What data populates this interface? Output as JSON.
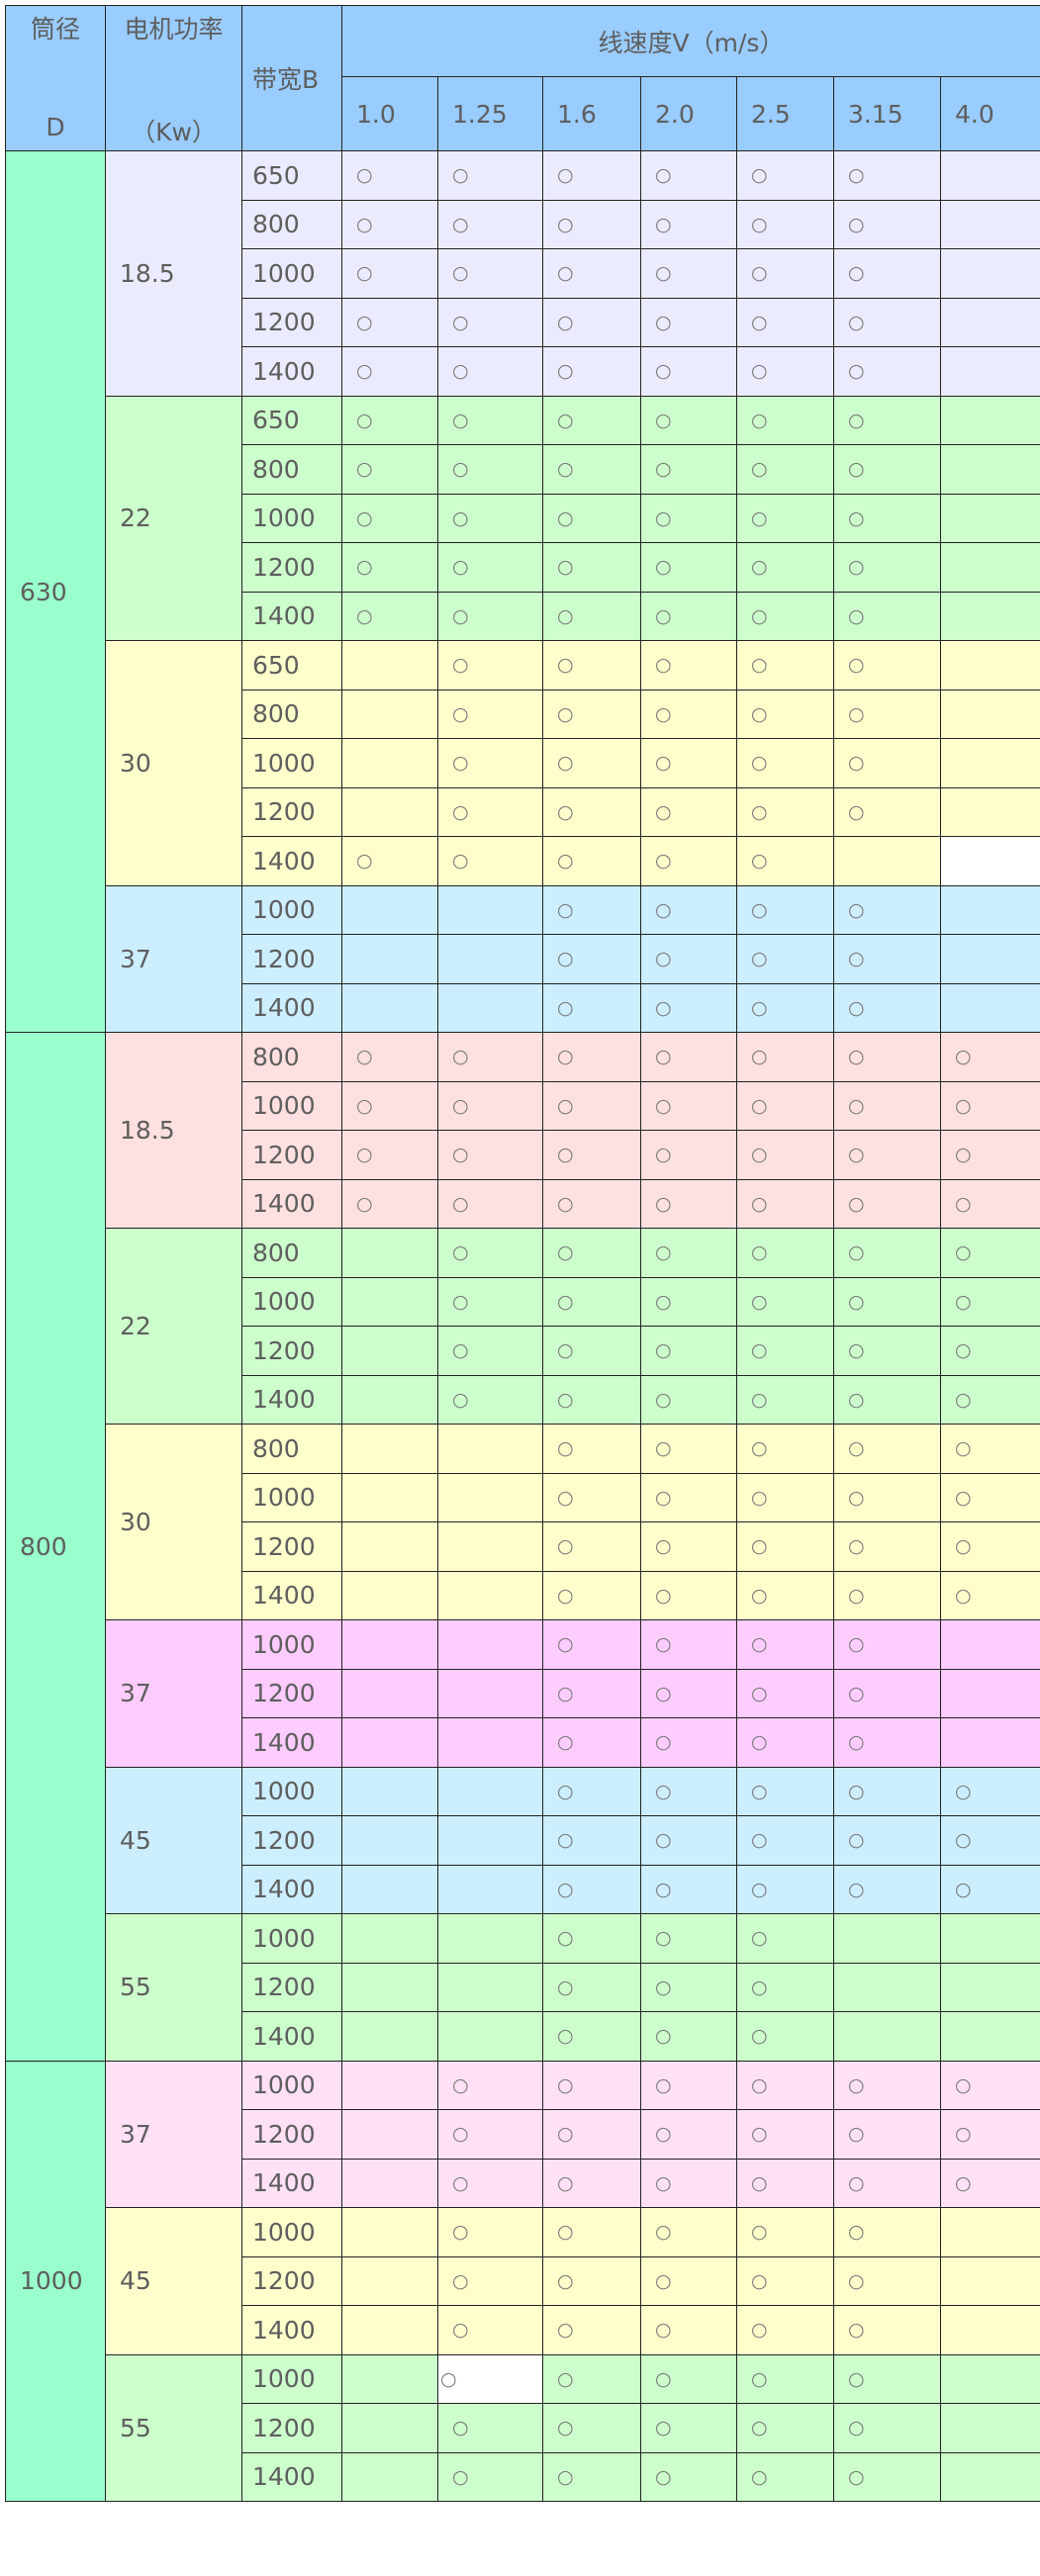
{
  "header": {
    "diameter_label_1": "筒径",
    "diameter_label_2": "D",
    "power_label_1": "电机功率",
    "power_label_2": "（Kw）",
    "belt_width_label": "带宽B",
    "speed_label": "线速度V（m/s）",
    "speeds": [
      "1.0",
      "1.25",
      "1.6",
      "2.0",
      "2.5",
      "3.15",
      "4.0"
    ]
  },
  "colors": {
    "header": "#99ccff",
    "diameter": "#99ffcc",
    "lavender": "#ebebff",
    "green": "#ccffcc",
    "yellow": "#ffffcc",
    "blue": "#cceeff",
    "pink": "#ffe0e0",
    "magenta": "#ffccff",
    "light_pink": "#ffe0f5"
  },
  "mark_symbol": "○",
  "groups": [
    {
      "diameter": "630",
      "powers": [
        {
          "power": "18.5",
          "color": "lavender",
          "rows": [
            {
              "width": "650",
              "cells": [
                1,
                1,
                1,
                1,
                1,
                1,
                0
              ]
            },
            {
              "width": "800",
              "cells": [
                1,
                1,
                1,
                1,
                1,
                1,
                0
              ]
            },
            {
              "width": "1000",
              "cells": [
                1,
                1,
                1,
                1,
                1,
                1,
                0
              ]
            },
            {
              "width": "1200",
              "cells": [
                1,
                1,
                1,
                1,
                1,
                1,
                0
              ]
            },
            {
              "width": "1400",
              "cells": [
                1,
                1,
                1,
                1,
                1,
                1,
                0
              ]
            }
          ]
        },
        {
          "power": "22",
          "color": "green",
          "rows": [
            {
              "width": "650",
              "cells": [
                1,
                1,
                1,
                1,
                1,
                1,
                0
              ]
            },
            {
              "width": "800",
              "cells": [
                1,
                1,
                1,
                1,
                1,
                1,
                0
              ]
            },
            {
              "width": "1000",
              "cells": [
                1,
                1,
                1,
                1,
                1,
                1,
                0
              ]
            },
            {
              "width": "1200",
              "cells": [
                1,
                1,
                1,
                1,
                1,
                1,
                0
              ]
            },
            {
              "width": "1400",
              "cells": [
                1,
                1,
                1,
                1,
                1,
                1,
                0
              ]
            }
          ]
        },
        {
          "power": "30",
          "color": "yellow",
          "rows": [
            {
              "width": "650",
              "cells": [
                0,
                1,
                1,
                1,
                1,
                1,
                0
              ]
            },
            {
              "width": "800",
              "cells": [
                0,
                1,
                1,
                1,
                1,
                1,
                0
              ]
            },
            {
              "width": "1000",
              "cells": [
                0,
                1,
                1,
                1,
                1,
                1,
                0
              ]
            },
            {
              "width": "1200",
              "cells": [
                0,
                1,
                1,
                1,
                1,
                1,
                0
              ]
            },
            {
              "width": "1400",
              "cells": [
                1,
                1,
                1,
                1,
                1,
                0,
                0
              ],
              "white_cols": [
                6
              ]
            }
          ]
        },
        {
          "power": "37",
          "color": "blue",
          "rows": [
            {
              "width": "1000",
              "cells": [
                0,
                0,
                1,
                1,
                1,
                1,
                0
              ]
            },
            {
              "width": "1200",
              "cells": [
                0,
                0,
                1,
                1,
                1,
                1,
                0
              ]
            },
            {
              "width": "1400",
              "cells": [
                0,
                0,
                1,
                1,
                1,
                1,
                0
              ]
            }
          ]
        }
      ]
    },
    {
      "diameter": "800",
      "powers": [
        {
          "power": "18.5",
          "color": "pink",
          "rows": [
            {
              "width": "800",
              "cells": [
                1,
                1,
                1,
                1,
                1,
                1,
                1
              ]
            },
            {
              "width": "1000",
              "cells": [
                1,
                1,
                1,
                1,
                1,
                1,
                1
              ]
            },
            {
              "width": "1200",
              "cells": [
                1,
                1,
                1,
                1,
                1,
                1,
                1
              ]
            },
            {
              "width": "1400",
              "cells": [
                1,
                1,
                1,
                1,
                1,
                1,
                1
              ]
            }
          ]
        },
        {
          "power": "22",
          "color": "green",
          "rows": [
            {
              "width": "800",
              "cells": [
                0,
                1,
                1,
                1,
                1,
                1,
                1
              ]
            },
            {
              "width": "1000",
              "cells": [
                0,
                1,
                1,
                1,
                1,
                1,
                1
              ]
            },
            {
              "width": "1200",
              "cells": [
                0,
                1,
                1,
                1,
                1,
                1,
                1
              ]
            },
            {
              "width": "1400",
              "cells": [
                0,
                1,
                1,
                1,
                1,
                1,
                1
              ]
            }
          ]
        },
        {
          "power": "30",
          "color": "yellow",
          "rows": [
            {
              "width": "800",
              "cells": [
                0,
                0,
                1,
                1,
                1,
                1,
                1
              ]
            },
            {
              "width": "1000",
              "cells": [
                0,
                0,
                1,
                1,
                1,
                1,
                1
              ]
            },
            {
              "width": "1200",
              "cells": [
                0,
                0,
                1,
                1,
                1,
                1,
                1
              ]
            },
            {
              "width": "1400",
              "cells": [
                0,
                0,
                1,
                1,
                1,
                1,
                1
              ]
            }
          ]
        },
        {
          "power": "37",
          "color": "magenta",
          "rows": [
            {
              "width": "1000",
              "cells": [
                0,
                0,
                1,
                1,
                1,
                1,
                0
              ]
            },
            {
              "width": "1200",
              "cells": [
                0,
                0,
                1,
                1,
                1,
                1,
                0
              ]
            },
            {
              "width": "1400",
              "cells": [
                0,
                0,
                1,
                1,
                1,
                1,
                0
              ]
            }
          ]
        },
        {
          "power": "45",
          "color": "blue",
          "rows": [
            {
              "width": "1000",
              "cells": [
                0,
                0,
                1,
                1,
                1,
                1,
                1
              ]
            },
            {
              "width": "1200",
              "cells": [
                0,
                0,
                1,
                1,
                1,
                1,
                1
              ]
            },
            {
              "width": "1400",
              "cells": [
                0,
                0,
                1,
                1,
                1,
                1,
                1
              ]
            }
          ]
        },
        {
          "power": "55",
          "color": "green",
          "rows": [
            {
              "width": "1000",
              "cells": [
                0,
                0,
                1,
                1,
                1,
                0,
                0
              ]
            },
            {
              "width": "1200",
              "cells": [
                0,
                0,
                1,
                1,
                1,
                0,
                0
              ]
            },
            {
              "width": "1400",
              "cells": [
                0,
                0,
                1,
                1,
                1,
                0,
                0
              ]
            }
          ]
        }
      ]
    },
    {
      "diameter": "1000",
      "powers": [
        {
          "power": "37",
          "color": "light_pink",
          "rows": [
            {
              "width": "1000",
              "cells": [
                0,
                1,
                1,
                1,
                1,
                1,
                1
              ]
            },
            {
              "width": "1200",
              "cells": [
                0,
                1,
                1,
                1,
                1,
                1,
                1
              ]
            },
            {
              "width": "1400",
              "cells": [
                0,
                1,
                1,
                1,
                1,
                1,
                1
              ]
            }
          ]
        },
        {
          "power": "45",
          "color": "yellow",
          "rows": [
            {
              "width": "1000",
              "cells": [
                0,
                1,
                1,
                1,
                1,
                1,
                0
              ]
            },
            {
              "width": "1200",
              "cells": [
                0,
                1,
                1,
                1,
                1,
                1,
                0
              ]
            },
            {
              "width": "1400",
              "cells": [
                0,
                1,
                1,
                1,
                1,
                1,
                0
              ]
            }
          ]
        },
        {
          "power": "55",
          "color": "green",
          "rows": [
            {
              "width": "1000",
              "cells": [
                0,
                1,
                1,
                1,
                1,
                1,
                0
              ],
              "white_cols": [
                1
              ]
            },
            {
              "width": "1200",
              "cells": [
                0,
                1,
                1,
                1,
                1,
                1,
                0
              ]
            },
            {
              "width": "1400",
              "cells": [
                0,
                1,
                1,
                1,
                1,
                1,
                0
              ]
            }
          ]
        }
      ]
    }
  ]
}
